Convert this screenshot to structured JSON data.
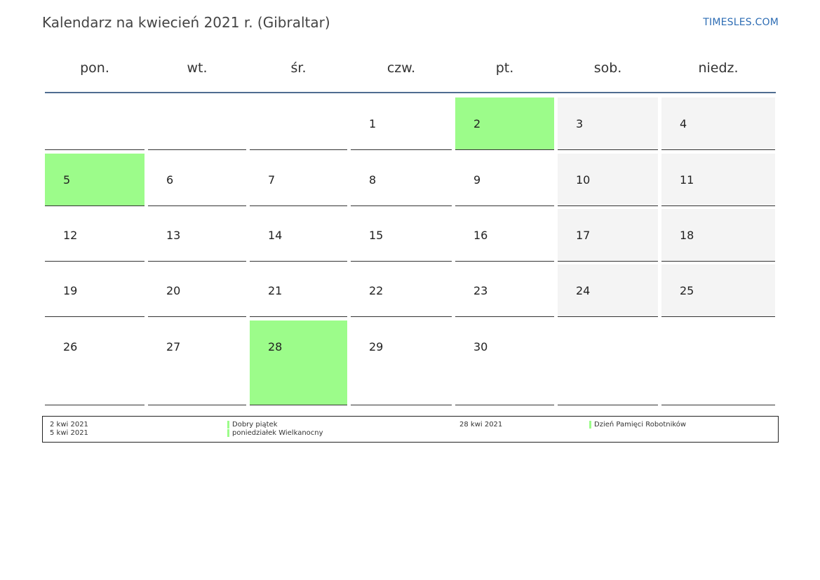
{
  "header": {
    "title": "Kalendarz na kwiecień 2021 r. (Gibraltar)",
    "site": "TIMESLES.COM"
  },
  "colors": {
    "holiday": "#9cfc8a",
    "weekend": "#f4f4f4",
    "rule": "#4f6d90",
    "link": "#2e6db4"
  },
  "weekdays": [
    "pon.",
    "wt.",
    "śr.",
    "czw.",
    "pt.",
    "sob.",
    "niedz."
  ],
  "weeks": [
    [
      {
        "day": "",
        "type": "empty"
      },
      {
        "day": "",
        "type": "empty"
      },
      {
        "day": "",
        "type": "empty"
      },
      {
        "day": "1",
        "type": "normal"
      },
      {
        "day": "2",
        "type": "holiday"
      },
      {
        "day": "3",
        "type": "weekend"
      },
      {
        "day": "4",
        "type": "weekend"
      }
    ],
    [
      {
        "day": "5",
        "type": "holiday"
      },
      {
        "day": "6",
        "type": "normal"
      },
      {
        "day": "7",
        "type": "normal"
      },
      {
        "day": "8",
        "type": "normal"
      },
      {
        "day": "9",
        "type": "normal"
      },
      {
        "day": "10",
        "type": "weekend"
      },
      {
        "day": "11",
        "type": "weekend"
      }
    ],
    [
      {
        "day": "12",
        "type": "normal"
      },
      {
        "day": "13",
        "type": "normal"
      },
      {
        "day": "14",
        "type": "normal"
      },
      {
        "day": "15",
        "type": "normal"
      },
      {
        "day": "16",
        "type": "normal"
      },
      {
        "day": "17",
        "type": "weekend"
      },
      {
        "day": "18",
        "type": "weekend"
      }
    ],
    [
      {
        "day": "19",
        "type": "normal"
      },
      {
        "day": "20",
        "type": "normal"
      },
      {
        "day": "21",
        "type": "normal"
      },
      {
        "day": "22",
        "type": "normal"
      },
      {
        "day": "23",
        "type": "normal"
      },
      {
        "day": "24",
        "type": "weekend"
      },
      {
        "day": "25",
        "type": "weekend"
      }
    ],
    [
      {
        "day": "26",
        "type": "normal"
      },
      {
        "day": "27",
        "type": "normal"
      },
      {
        "day": "28",
        "type": "holiday"
      },
      {
        "day": "29",
        "type": "normal"
      },
      {
        "day": "30",
        "type": "normal"
      },
      {
        "day": "",
        "type": "empty"
      },
      {
        "day": "",
        "type": "empty"
      }
    ]
  ],
  "legend": {
    "left": [
      {
        "date": "2 kwi 2021",
        "name": "Dobry piątek"
      },
      {
        "date": "5 kwi 2021",
        "name": "poniedziałek Wielkanocny"
      }
    ],
    "right": [
      {
        "date": "28 kwi 2021",
        "name": "Dzień Pamięci Robotników"
      }
    ]
  }
}
